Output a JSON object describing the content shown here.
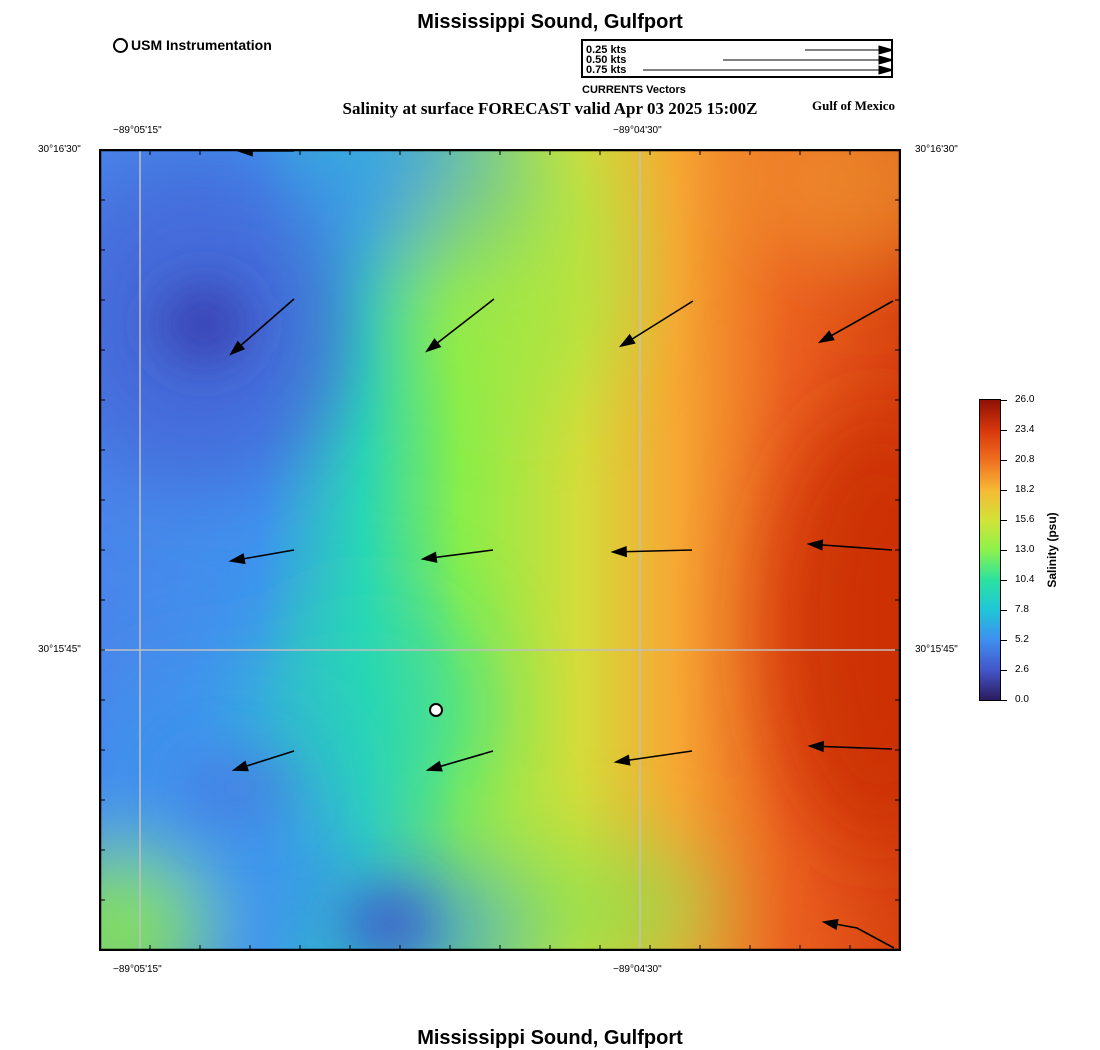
{
  "title_top": "Mississippi Sound, Gulfport",
  "title_bottom": "Mississippi Sound, Gulfport",
  "legend": {
    "usm_label": "USM Instrumentation"
  },
  "subtitle": "Salinity at surface FORECAST valid Apr 03 2025 15:00Z",
  "region_label": "Gulf of Mexico",
  "vector_legend": {
    "items": [
      "0.25 kts",
      "0.50 kts",
      "0.75 kts"
    ],
    "caption": "CURRENTS Vectors"
  },
  "map": {
    "lon_labels": [
      "−89°05'15\"",
      "−89°04'30\""
    ],
    "lat_labels": [
      "30°16'30\"",
      "30°15'45\""
    ]
  },
  "colorbar": {
    "title": "Salinity (psu)",
    "ticks": [
      "0.0",
      "2.6",
      "5.2",
      "7.8",
      "10.4",
      "13.0",
      "15.6",
      "18.2",
      "20.8",
      "23.4",
      "26.0"
    ],
    "colors": [
      "#2b1b5e",
      "#4456c9",
      "#3f8ff0",
      "#1fc6d8",
      "#2be2a0",
      "#8df24c",
      "#d2e237",
      "#f6b934",
      "#ef6e1f",
      "#d8360c",
      "#8e1105"
    ]
  }
}
